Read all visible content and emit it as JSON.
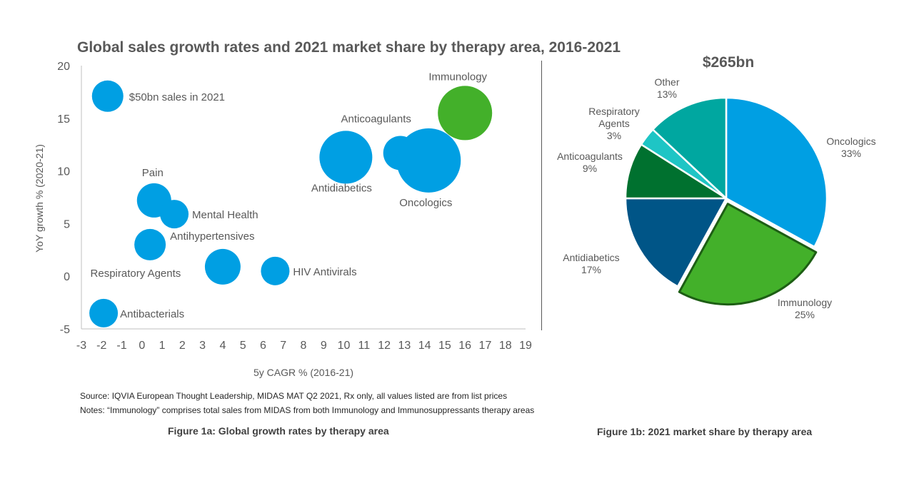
{
  "title": "Global sales growth rates and 2021 market share by therapy area, 2016-2021",
  "source": "Source: IQVIA European Thought Leadership, MIDAS MAT Q2 2021,  Rx only, all values listed are from list prices",
  "notes": "Notes: “Immunology” comprises total sales from MIDAS from both Immunology and Immunosuppressants therapy areas",
  "caption_1a": "Figure 1a: Global growth rates by therapy area",
  "caption_1b": "Figure 1b: 2021 market share by therapy area",
  "chart_data": [
    {
      "type": "scatter",
      "subtype": "bubble",
      "xlabel": "5y CAGR % (2016-21)",
      "ylabel": "YoY growth % (2020-21)",
      "xlim": [
        -3,
        19
      ],
      "ylim": [
        -5,
        20
      ],
      "xticks": [
        "-3",
        "-2",
        "-1",
        "0",
        "1",
        "2",
        "3",
        "4",
        "5",
        "6",
        "7",
        "8",
        "9",
        "10",
        "11",
        "12",
        "13",
        "14",
        "15",
        "16",
        "17",
        "18",
        "19"
      ],
      "yticks": [
        "20",
        "15",
        "10",
        "5",
        "0",
        "-5"
      ],
      "legend_bubble": {
        "label": "$50bn sales in 2021",
        "x": -1.7,
        "y": 17.1
      },
      "points": [
        {
          "name": "Pain",
          "x": 0.6,
          "y": 7.2
        },
        {
          "name": "Mental Health",
          "x": 1.6,
          "y": 5.9
        },
        {
          "name": "Antihypertensives",
          "x": 0.4,
          "y": 3.0
        },
        {
          "name": "Respiratory Agents",
          "x": 4.0,
          "y": 0.9
        },
        {
          "name": "HIV Antivirals",
          "x": 6.6,
          "y": 0.5
        },
        {
          "name": "Antibacterials",
          "x": -1.9,
          "y": -3.5
        },
        {
          "name": "Antidiabetics",
          "x": 10.1,
          "y": 11.3
        },
        {
          "name": "Anticoagulants",
          "x": 12.8,
          "y": 11.7
        },
        {
          "name": "Oncologics",
          "x": 14.2,
          "y": 11.0
        },
        {
          "name": "Immunology",
          "x": 16.0,
          "y": 15.5
        }
      ],
      "colors": {
        "default": "#009fe3",
        "highlight": "#43b02a"
      }
    },
    {
      "type": "pie",
      "total": "$265bn",
      "slices": [
        {
          "name": "Oncologics",
          "value": 33,
          "label": "33%",
          "color": "#009fe3"
        },
        {
          "name": "Immunology",
          "value": 25,
          "label": "25%",
          "color": "#43b02a",
          "highlight": true
        },
        {
          "name": "Antidiabetics",
          "value": 17,
          "label": "17%",
          "color": "#005587"
        },
        {
          "name": "Anticoagulants",
          "value": 9,
          "label": "9%",
          "color": "#00712f"
        },
        {
          "name": "Respiratory Agents",
          "value": 3,
          "label": "3%",
          "color": "#1ec5c5"
        },
        {
          "name": "Other",
          "value": 13,
          "label": "13%",
          "color": "#00a7a0"
        }
      ]
    }
  ]
}
